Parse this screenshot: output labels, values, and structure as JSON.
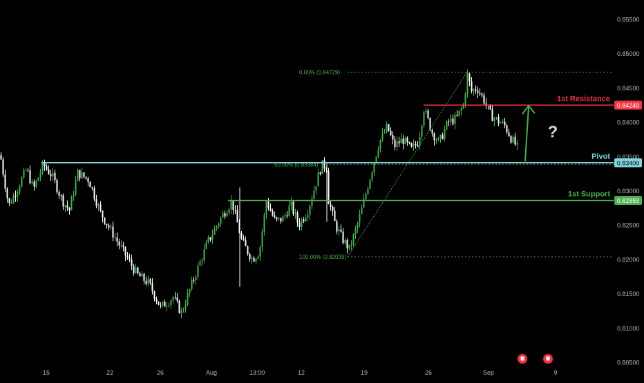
{
  "chart_data": {
    "type": "candlestick",
    "x_ticks": [
      "15",
      "22",
      "26",
      "Aug",
      "13:00",
      "12",
      "19",
      "26",
      "Sep",
      "9"
    ],
    "y_ticks": [
      "0.85500",
      "0.85000",
      "0.84500",
      "0.84000",
      "0.83500",
      "0.83000",
      "0.82500",
      "0.82000",
      "0.81500",
      "0.81000",
      "0.80500"
    ],
    "ylim": [
      0.8025,
      0.8578
    ],
    "price_path": [
      [
        0,
        0.8352
      ],
      [
        12,
        0.8278
      ],
      [
        25,
        0.8304
      ],
      [
        38,
        0.8332
      ],
      [
        48,
        0.8302
      ],
      [
        62,
        0.8338
      ],
      [
        75,
        0.8322
      ],
      [
        90,
        0.8285
      ],
      [
        100,
        0.8272
      ],
      [
        112,
        0.8326
      ],
      [
        128,
        0.8316
      ],
      [
        145,
        0.8268
      ],
      [
        170,
        0.8225
      ],
      [
        198,
        0.8178
      ],
      [
        215,
        0.8165
      ],
      [
        232,
        0.813
      ],
      [
        250,
        0.8145
      ],
      [
        262,
        0.8122
      ],
      [
        280,
        0.8172
      ],
      [
        300,
        0.8225
      ],
      [
        320,
        0.8262
      ],
      [
        335,
        0.8285
      ],
      [
        350,
        0.8225
      ],
      [
        365,
        0.82
      ],
      [
        375,
        0.8212
      ],
      [
        385,
        0.8285
      ],
      [
        398,
        0.8255
      ],
      [
        410,
        0.826
      ],
      [
        420,
        0.828
      ],
      [
        432,
        0.825
      ],
      [
        445,
        0.8272
      ],
      [
        455,
        0.8305
      ],
      [
        465,
        0.8338
      ],
      [
        472,
        0.8335
      ],
      [
        474,
        0.829
      ],
      [
        485,
        0.825
      ],
      [
        495,
        0.823
      ],
      [
        505,
        0.8215
      ],
      [
        515,
        0.8245
      ],
      [
        525,
        0.828
      ],
      [
        535,
        0.832
      ],
      [
        548,
        0.837
      ],
      [
        560,
        0.8393
      ],
      [
        570,
        0.8365
      ],
      [
        582,
        0.8375
      ],
      [
        595,
        0.836
      ],
      [
        605,
        0.8372
      ],
      [
        613,
        0.842
      ],
      [
        625,
        0.8385
      ],
      [
        635,
        0.837
      ],
      [
        648,
        0.84
      ],
      [
        660,
        0.8405
      ],
      [
        670,
        0.8425
      ],
      [
        676,
        0.8468
      ],
      [
        682,
        0.8445
      ],
      [
        690,
        0.845
      ],
      [
        700,
        0.8432
      ],
      [
        710,
        0.841
      ],
      [
        720,
        0.8402
      ],
      [
        730,
        0.8395
      ],
      [
        740,
        0.8375
      ],
      [
        749,
        0.8362
      ]
    ],
    "levels": [
      {
        "name": "1st Resistance",
        "value": 0.84249,
        "label": "0.84249",
        "color": "#f23645"
      },
      {
        "name": "Pivot",
        "value": 0.83409,
        "label": "0.83409",
        "color": "#7fd6e0"
      },
      {
        "name": "1st Support",
        "value": 0.82859,
        "label": "0.82859",
        "color": "#4caf50"
      }
    ],
    "fibonacci": [
      {
        "text": "0.00% (0.84729)",
        "value": 0.84729
      },
      {
        "text": "50.00% (0.83384)",
        "value": 0.83384
      },
      {
        "text": "100.00% (0.82039)",
        "value": 0.82039
      }
    ],
    "annotations": {
      "question_mark": "?"
    },
    "colors": {
      "background": "#000000",
      "candle_up": "#4caf50",
      "candle_down": "#ffffff",
      "fib": "#4caf50",
      "arrow": "#4caf50",
      "axis_text": "#b2b5be"
    }
  }
}
